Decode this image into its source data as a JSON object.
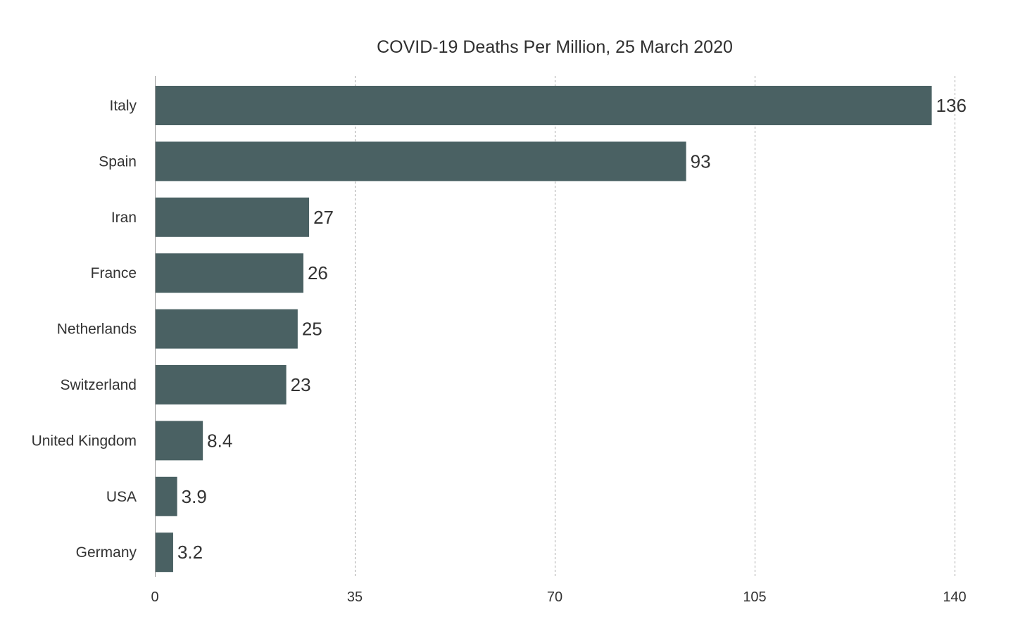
{
  "colors": {
    "bar": "#4a6163",
    "text": "#333333",
    "grid": "#a8a8a8",
    "background": "#ffffff"
  },
  "chart_data": {
    "type": "bar",
    "orientation": "horizontal",
    "title": "COVID-19 Deaths Per Million, 25 March 2020",
    "xlabel": "",
    "ylabel": "",
    "categories": [
      "Italy",
      "Spain",
      "Iran",
      "France",
      "Netherlands",
      "Switzerland",
      "United Kingdom",
      "USA",
      "Germany"
    ],
    "values": [
      136,
      93,
      27,
      26,
      25,
      23,
      8.4,
      3.9,
      3.2
    ],
    "value_labels": [
      "136",
      "93",
      "27",
      "26",
      "25",
      "23",
      "8.4",
      "3.9",
      "3.2"
    ],
    "xlim": [
      0,
      140
    ],
    "xticks": [
      0,
      35,
      70,
      105,
      140
    ],
    "xtick_labels": [
      "0",
      "35",
      "70",
      "105",
      "140"
    ],
    "grid": "vertical dashed",
    "legend": "none"
  }
}
